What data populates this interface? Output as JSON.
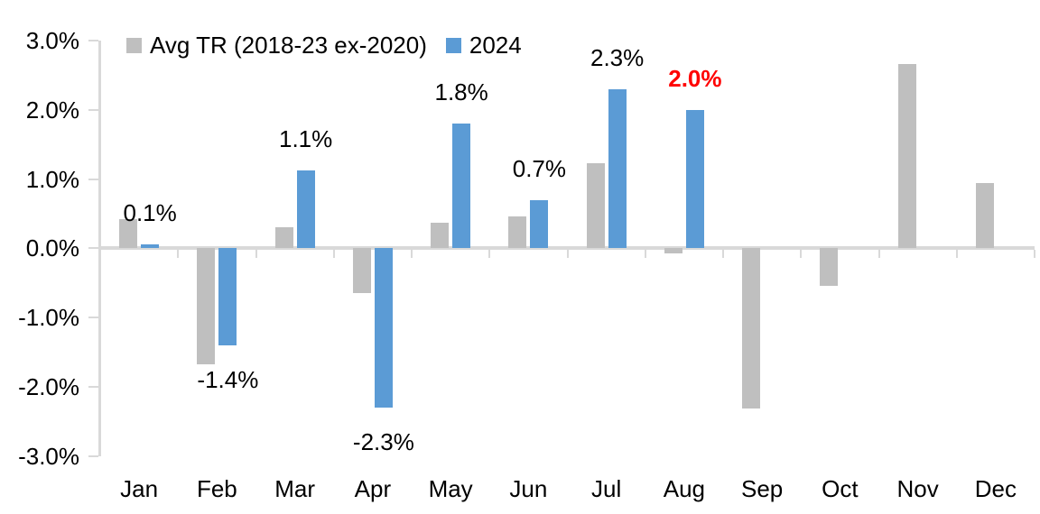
{
  "chart_data": {
    "type": "bar",
    "title": "",
    "xlabel": "",
    "ylabel": "",
    "categories": [
      "Jan",
      "Feb",
      "Mar",
      "Apr",
      "May",
      "Jun",
      "Jul",
      "Aug",
      "Sep",
      "Oct",
      "Nov",
      "Dec"
    ],
    "series": [
      {
        "name": "Avg TR (2018-23 ex-2020)",
        "color": "#BFBFBF",
        "values": [
          0.42,
          -1.68,
          0.3,
          -0.65,
          0.37,
          0.46,
          1.23,
          -0.07,
          -2.31,
          -0.54,
          2.67,
          0.95
        ]
      },
      {
        "name": "2024",
        "color": "#5B9BD5",
        "values": [
          0.06,
          -1.4,
          1.13,
          -2.3,
          1.8,
          0.69,
          2.3,
          2.0,
          null,
          null,
          null,
          null
        ]
      }
    ],
    "data_labels": [
      {
        "category": "Jan",
        "text": "0.1%",
        "color": "#000000",
        "bold": false
      },
      {
        "category": "Feb",
        "text": "-1.4%",
        "color": "#000000",
        "bold": false
      },
      {
        "category": "Mar",
        "text": "1.1%",
        "color": "#000000",
        "bold": false
      },
      {
        "category": "Apr",
        "text": "-2.3%",
        "color": "#000000",
        "bold": false
      },
      {
        "category": "May",
        "text": "1.8%",
        "color": "#000000",
        "bold": false
      },
      {
        "category": "Jun",
        "text": "0.7%",
        "color": "#000000",
        "bold": false
      },
      {
        "category": "Jul",
        "text": "2.3%",
        "color": "#000000",
        "bold": false
      },
      {
        "category": "Aug",
        "text": "2.0%",
        "color": "#FF0000",
        "bold": true
      }
    ],
    "ylim": [
      -3,
      3
    ],
    "yticks": [
      "3.0%",
      "2.0%",
      "1.0%",
      "0.0%",
      "-1.0%",
      "-2.0%",
      "-3.0%"
    ],
    "ytick_values": [
      3,
      2,
      1,
      0,
      -1,
      -2,
      -3
    ],
    "grid": false,
    "legend_position": "top-left",
    "axis_color": "#D9D9D9"
  }
}
